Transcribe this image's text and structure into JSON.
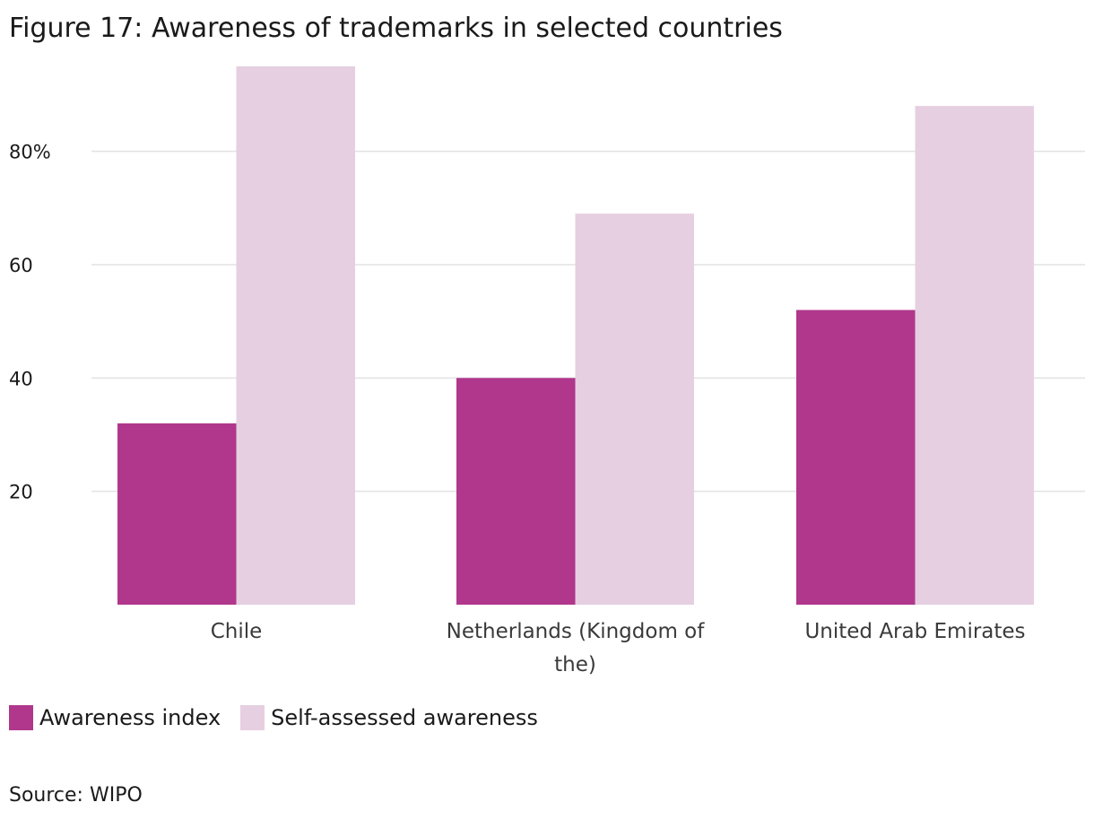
{
  "chart_data": {
    "type": "bar",
    "title": "Figure 17: Awareness of trademarks in selected countries",
    "categories": [
      "Chile",
      "Netherlands (Kingdom of the)",
      "United Arab Emirates"
    ],
    "category_label_lines": [
      [
        "Chile"
      ],
      [
        "Netherlands (Kingdom of",
        "the)"
      ],
      [
        "United Arab Emirates"
      ]
    ],
    "series": [
      {
        "name": "Awareness index",
        "values": [
          32,
          40,
          52
        ],
        "color": "#b0378c"
      },
      {
        "name": "Self-assessed awareness",
        "values": [
          95,
          69,
          88
        ],
        "color": "#e6cfe1"
      }
    ],
    "y_ticks": [
      20,
      40,
      60,
      80
    ],
    "y_tick_labels": [
      "20",
      "40",
      "60",
      "80%"
    ],
    "ylim": [
      0,
      95
    ],
    "grid": true,
    "legend_position": "bottom-left",
    "source": "Source: WIPO"
  }
}
